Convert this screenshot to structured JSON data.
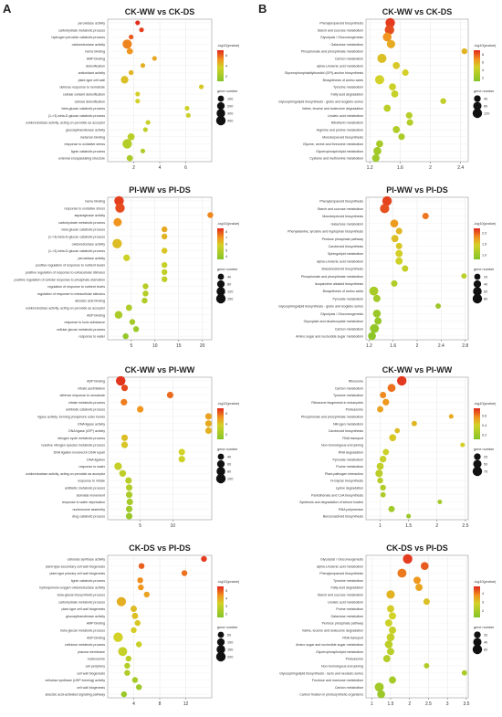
{
  "panels": {
    "left": "A",
    "right": "B"
  },
  "legend_text": {
    "color_title": "-log10(pvalue)",
    "size_title": "gene number"
  },
  "chart_data": [
    {
      "type": "scatter",
      "title": "CK-WW vs CK-DS",
      "xlim": [
        0,
        8
      ],
      "xticks": [
        2,
        4,
        6
      ],
      "colorbar": {
        "ticks": [
          "2",
          "4",
          "6"
        ],
        "range": [
          1,
          7
        ]
      },
      "size_legend": {
        "labels": [
          "100",
          "200",
          "300",
          "400"
        ]
      },
      "terms": [
        "peroxidase activity",
        "carbohydrate metabolic process",
        "hydrogen peroxide catabolic process",
        "oxidoreductase activity",
        "heme binding",
        "AMP binding",
        "detoxification",
        "antioxidant activity",
        "plant-type cell wall",
        "defense response to nematode",
        "cellular oxidant detoxification",
        "cellular detoxification",
        "beta-glucan catabolic process",
        "(1->3)-beta-D-glucan catabolic process",
        "oxidoreductase activity, acting on peroxide as acceptor",
        "glucosyltransferase activity",
        "metal ion binding",
        "response to oxidative stress",
        "lignin catabolic process",
        "external encapsulating structure"
      ],
      "x": [
        2.3,
        2.6,
        1.8,
        1.5,
        1.7,
        3.6,
        2.7,
        1.8,
        1.3,
        7.2,
        2.3,
        2.3,
        6.1,
        6.2,
        3.1,
        2.9,
        1.8,
        1.5,
        2.7,
        1.7
      ],
      "color": [
        6.9,
        6.6,
        6.2,
        5.5,
        5.2,
        4.8,
        4.6,
        4.4,
        4.2,
        4.0,
        3.8,
        3.7,
        3.5,
        3.4,
        3.3,
        3.1,
        2.9,
        2.7,
        2.5,
        2.3
      ],
      "gene_number": [
        30,
        30,
        30,
        380,
        100,
        30,
        30,
        40,
        200,
        30,
        30,
        30,
        30,
        30,
        30,
        30,
        160,
        400,
        30,
        100
      ]
    },
    {
      "type": "scatter",
      "title": "PI-WW vs PI-DS",
      "xlim": [
        0,
        22
      ],
      "xticks": [
        5,
        10,
        15,
        20
      ],
      "colorbar": {
        "ticks": [
          "4",
          "5",
          "6",
          "7",
          "8"
        ],
        "range": [
          3.5,
          8.5
        ]
      },
      "size_legend": {
        "labels": [
          "40",
          "80",
          "120",
          "150"
        ]
      },
      "terms": [
        "heme binding",
        "response to oxidative stress",
        "asparaginase activity",
        "carbohydrate metabolic process",
        "beta-glucan catabolic process",
        "(1->3)-beta-D-glucan catabolic process",
        "oxidoreductase activity",
        "(1->3)-beta-D-glucan catabolic process",
        "peroxidase activity",
        "positive regulation of response to nutrient levels",
        "positive regulation of response to extracellular stimulus",
        "positive regulation of cellular response to phosphate starvation",
        "regulation of response to nutrient levels",
        "regulation of response to extracellular stimulus",
        "abscisic acid binding",
        "oxidoreductase activity, acting on peroxide as acceptor",
        "ADP binding",
        "response to toxic substance",
        "cellular glucan metabolic process",
        "response to water"
      ],
      "x": [
        2.4,
        2.6,
        21.7,
        2.1,
        12.0,
        12.0,
        2.0,
        12.0,
        4.0,
        12.0,
        12.0,
        12.0,
        8.0,
        8.0,
        7.8,
        4.5,
        2.3,
        5.2,
        6.0,
        3.8
      ],
      "color": [
        8.2,
        8.0,
        7.2,
        7.0,
        6.6,
        6.4,
        6.2,
        6.0,
        5.6,
        5.4,
        5.3,
        5.2,
        5.0,
        4.9,
        4.8,
        4.7,
        4.6,
        4.4,
        4.2,
        4.0
      ],
      "gene_number": [
        150,
        150,
        30,
        100,
        30,
        30,
        150,
        30,
        50,
        30,
        30,
        30,
        30,
        30,
        30,
        40,
        80,
        30,
        30,
        30
      ]
    },
    {
      "type": "scatter",
      "title": "CK-WW vs PI-WW",
      "xlim": [
        0,
        16
      ],
      "xticks": [
        5,
        10
      ],
      "colorbar": {
        "ticks": [
          "2",
          "4",
          "6"
        ],
        "range": [
          1,
          7
        ]
      },
      "size_legend": {
        "labels": [
          "40",
          "60",
          "80",
          "100"
        ]
      },
      "terms": [
        "ADP binding",
        "nitrate assimilation",
        "defense response to nematode",
        "nitrate metabolic process",
        "antibiotic catabolic process",
        "ligase activity, forming phosphoric ester bonds",
        "DNA ligase activity",
        "DNA ligase (ATP) activity",
        "nitrogen cycle metabolic process",
        "reactive nitrogen species metabolic process",
        "DNA ligation involved in DNA repair",
        "DNA ligation",
        "response to water",
        "oxidoreductase activity, acting on peroxide as acceptor",
        "response to nitrate",
        "antibiotic metabolic process",
        "stomatal movement",
        "response to water deprivation",
        "nucleosome assembly",
        "drug catabolic process"
      ],
      "x": [
        2.0,
        2.6,
        9.6,
        2.5,
        5.0,
        15.5,
        15.5,
        15.5,
        2.6,
        2.6,
        11.4,
        11.4,
        1.6,
        2.3,
        3.2,
        3.3,
        3.3,
        3.4,
        3.3,
        3.3
      ],
      "color": [
        6.8,
        6.5,
        5.9,
        5.6,
        5.2,
        4.9,
        4.7,
        4.5,
        4.2,
        4.0,
        3.7,
        3.5,
        3.2,
        3.0,
        2.8,
        2.6,
        2.4,
        2.2,
        2.0,
        1.8
      ],
      "gene_number": [
        100,
        30,
        30,
        30,
        30,
        30,
        30,
        30,
        30,
        30,
        30,
        30,
        50,
        35,
        30,
        30,
        30,
        30,
        30,
        30
      ]
    },
    {
      "type": "scatter",
      "title": "CK-DS vs PI-DS",
      "xlim": [
        0,
        16
      ],
      "xticks": [
        4,
        8,
        12
      ],
      "colorbar": {
        "ticks": [
          "2",
          "3",
          "4",
          "5"
        ],
        "range": [
          1.5,
          5.5
        ]
      },
      "size_legend": {
        "labels": [
          "50",
          "100",
          "150",
          "200"
        ]
      },
      "terms": [
        "cellulose synthase activity",
        "plant-type secondary cell wall biogenesis",
        "plant-type primary cell wall biogenesis",
        "lignin catabolic process",
        "hydroquinone:oxygen oxidoreductase activity",
        "beta-glucan biosynthetic process",
        "carbohydrate metabolic process",
        "plant-type cell wall biogenesis",
        "glucosyltransferase activity",
        "AMP binding",
        "beta-glucan metabolic process",
        "ADP binding",
        "cellulose metabolic process",
        "plasma membrane",
        "nucleosome",
        "cell periphery",
        "cell wall biogenesis",
        "cellulose synthase (UDP-forming) activity",
        "cell wall biogenesis",
        "abscisic acid-activated signaling pathway"
      ],
      "x": [
        14.8,
        5.2,
        11.8,
        5.0,
        5.1,
        6.0,
        2.1,
        4.0,
        4.2,
        4.6,
        4.0,
        1.6,
        4.8,
        2.3,
        3.2,
        3.0,
        3.0,
        4.2,
        4.8,
        2.5
      ],
      "color": [
        5.3,
        4.9,
        4.7,
        4.4,
        4.3,
        4.1,
        3.9,
        3.7,
        3.6,
        3.5,
        3.4,
        3.3,
        3.1,
        3.0,
        2.8,
        2.6,
        2.5,
        2.3,
        2.1,
        2.0
      ],
      "gene_number": [
        30,
        30,
        30,
        30,
        30,
        30,
        140,
        40,
        40,
        30,
        30,
        150,
        30,
        130,
        30,
        30,
        30,
        30,
        30,
        30
      ]
    },
    {
      "type": "scatter",
      "title": "CK-WW vs CK-DS",
      "xlim": [
        1.15,
        2.5
      ],
      "xticks": [
        1.2,
        1.6,
        2.0,
        2.4
      ],
      "colorbar": {
        "ticks": [
          "2",
          "4",
          "6",
          "8"
        ],
        "range": [
          1,
          9
        ]
      },
      "size_legend": {
        "labels": [
          "40",
          "80",
          "120"
        ]
      },
      "terms": [
        "Phenylpropanoid biosynthesis",
        "Starch and sucrose metabolism",
        "Glycolysis / Gluconeogenesis",
        "Galactose metabolism",
        "Phosphonate and phosphinate metabolism",
        "Carbon metabolism",
        "alpha-Linolenic acid metabolism",
        "Glycerophosphatidylinositol (GPI)-anchor biosynthesis",
        "Biosynthesis of amino acids",
        "Tyrosine metabolism",
        "Fatty acid degradation",
        "Glycosphingolipid biosynthesis - globo and isoglobo series",
        "Valine, leucine and isoleucine degradation",
        "Linoleic acid metabolism",
        "Riboflavin metabolism",
        "Arginine and proline metabolism",
        "Monoterpenoid biosynthesis",
        "Glycine, serine and threonine metabolism",
        "Glycerophospholipid metabolism",
        "Cysteine and methionine metabolism"
      ],
      "x": [
        1.47,
        1.46,
        1.43,
        1.48,
        2.45,
        1.36,
        1.55,
        1.67,
        1.33,
        1.5,
        1.53,
        2.17,
        1.43,
        1.72,
        1.73,
        1.55,
        1.62,
        1.33,
        1.3,
        1.28
      ],
      "color": [
        8.6,
        8.2,
        6.6,
        5.9,
        5.6,
        5.2,
        4.9,
        4.7,
        4.6,
        4.3,
        4.0,
        3.8,
        3.6,
        3.4,
        3.2,
        3.0,
        2.8,
        2.6,
        2.4,
        2.2
      ],
      "gene_number": [
        100,
        100,
        80,
        70,
        20,
        90,
        40,
        30,
        90,
        40,
        40,
        20,
        40,
        30,
        30,
        40,
        30,
        40,
        60,
        50
      ]
    },
    {
      "type": "scatter",
      "title": "PI-WW vs PI-DS",
      "xlim": [
        1.15,
        2.85
      ],
      "xticks": [
        1.2,
        1.6,
        2.0,
        2.4,
        2.8
      ],
      "colorbar": {
        "ticks": [
          "1.0",
          "1.5",
          "2.0"
        ],
        "range": [
          0.8,
          2.2
        ]
      },
      "size_legend": {
        "labels": [
          "20",
          "40",
          "60",
          "80"
        ]
      },
      "terms": [
        "Phenylpropanoid biosynthesis",
        "Starch and sucrose metabolism",
        "Monoterpenoid biosynthesis",
        "Galactose metabolism",
        "Phenylalanine, tyrosine and tryptophan biosynthesis",
        "Pentose phosphate pathway",
        "Carotenoid biosynthesis",
        "Sphingolipid metabolism",
        "alpha-Linolenic acid metabolism",
        "Brassinosteroid biosynthesis",
        "Phosphonate and phosphinate metabolism",
        "Isoquinoline alkaloid biosynthesis",
        "Biosynthesis of amino acids",
        "Pyruvate metabolism",
        "Glycosphingolipid biosynthesis - globo and isoglobo series",
        "Glycolysis / Gluconeogenesis",
        "Glyoxylate and dicarboxylate metabolism",
        "Carbon metabolism",
        "Amino sugar and nucleotide sugar metabolism"
      ],
      "x": [
        1.5,
        1.46,
        2.14,
        1.62,
        1.7,
        1.63,
        1.7,
        1.7,
        1.7,
        1.8,
        2.78,
        1.62,
        1.28,
        1.33,
        2.35,
        1.33,
        1.35,
        1.29,
        1.25
      ],
      "color": [
        2.1,
        2.05,
        1.9,
        1.75,
        1.6,
        1.55,
        1.5,
        1.45,
        1.4,
        1.3,
        1.25,
        1.15,
        1.1,
        1.05,
        1.0,
        0.98,
        0.95,
        0.92,
        0.88
      ],
      "gene_number": [
        70,
        65,
        20,
        40,
        20,
        30,
        20,
        30,
        30,
        20,
        10,
        20,
        60,
        30,
        10,
        40,
        30,
        60,
        40
      ]
    },
    {
      "type": "scatter",
      "title": "CK-WW vs PI-WW",
      "xlim": [
        0.75,
        2.55
      ],
      "xticks": [
        1.0,
        1.5,
        2.0,
        2.5
      ],
      "colorbar": {
        "ticks": [
          "0.2",
          "0.4",
          "0.6"
        ],
        "range": [
          0.1,
          0.75
        ]
      },
      "size_legend": {
        "labels": [
          "25",
          "50",
          "75"
        ]
      },
      "terms": [
        "Ribosome",
        "Carbon metabolism",
        "Tyrosine metabolism",
        "Ribosome biogenesis in eukaryotes",
        "Proteasome",
        "Phosphonate and phosphinate metabolism",
        "Nitrogen metabolism",
        "Carotenoid biosynthesis",
        "RNA transport",
        "Non-homologous end-joining",
        "RNA degradation",
        "Pyruvate metabolism",
        "Purine metabolism",
        "Plant-pathogen interaction",
        "N-Glycan biosynthesis",
        "Lysine degradation",
        "Pantothenate and CoA biosynthesis",
        "Synthesis and degradation of ketone bodies",
        "RNA polymerase",
        "Benzoxazinoid biosynthesis"
      ],
      "x": [
        1.38,
        1.2,
        1.05,
        1.1,
        1.0,
        2.25,
        1.6,
        1.3,
        1.22,
        2.45,
        1.1,
        1.05,
        1.0,
        0.98,
        1.0,
        1.05,
        1.05,
        2.05,
        1.2,
        1.5
      ],
      "color": [
        0.72,
        0.62,
        0.58,
        0.55,
        0.52,
        0.5,
        0.47,
        0.45,
        0.42,
        0.4,
        0.37,
        0.35,
        0.33,
        0.31,
        0.29,
        0.27,
        0.25,
        0.23,
        0.21,
        0.18
      ],
      "gene_number": [
        75,
        45,
        20,
        25,
        20,
        5,
        10,
        10,
        30,
        5,
        20,
        25,
        30,
        35,
        15,
        15,
        10,
        5,
        20,
        5
      ]
    },
    {
      "type": "scatter",
      "title": "CK-DS vs PI-DS",
      "xlim": [
        0.85,
        3.55
      ],
      "xticks": [
        1.0,
        1.5,
        2.0,
        2.5,
        3.0,
        3.5
      ],
      "colorbar": {
        "ticks": [
          "2",
          "3",
          "4"
        ],
        "range": [
          1.2,
          4.8
        ]
      },
      "size_legend": {
        "labels": [
          "20",
          "40",
          "60"
        ]
      },
      "terms": [
        "Glycolysis / Gluconeogenesis",
        "alpha-Linolenic acid metabolism",
        "Phenylpropanoid biosynthesis",
        "Tyrosine metabolism",
        "Fatty acid degradation",
        "Starch and sucrose metabolism",
        "Linoleic acid metabolism",
        "Purine metabolism",
        "Galactose metabolism",
        "Pentose phosphate pathway",
        "Valine, leucine and isoleucine degradation",
        "RNA transport",
        "Amino sugar and nucleotide sugar metabolism",
        "Glycerophospholipid metabolism",
        "Proteasome",
        "Non-homologous end-joining",
        "Glycosphingolipid biosynthesis - lacto and neolacto series",
        "Fructose and mannose metabolism",
        "Carbon metabolism",
        "Carbon fixation in photosynthetic organisms"
      ],
      "x": [
        1.95,
        2.4,
        1.8,
        2.2,
        2.25,
        1.5,
        2.45,
        1.5,
        1.55,
        1.45,
        1.55,
        1.5,
        1.45,
        1.5,
        1.4,
        2.45,
        3.45,
        1.55,
        1.2,
        1.25
      ],
      "color": [
        4.6,
        4.3,
        4.0,
        3.7,
        3.5,
        3.3,
        3.1,
        2.9,
        2.8,
        2.7,
        2.6,
        2.5,
        2.4,
        2.3,
        2.2,
        2.1,
        2.0,
        1.9,
        1.8,
        1.7
      ],
      "gene_number": [
        70,
        40,
        60,
        30,
        30,
        50,
        20,
        30,
        30,
        30,
        30,
        40,
        40,
        30,
        30,
        10,
        10,
        30,
        60,
        40
      ]
    }
  ]
}
